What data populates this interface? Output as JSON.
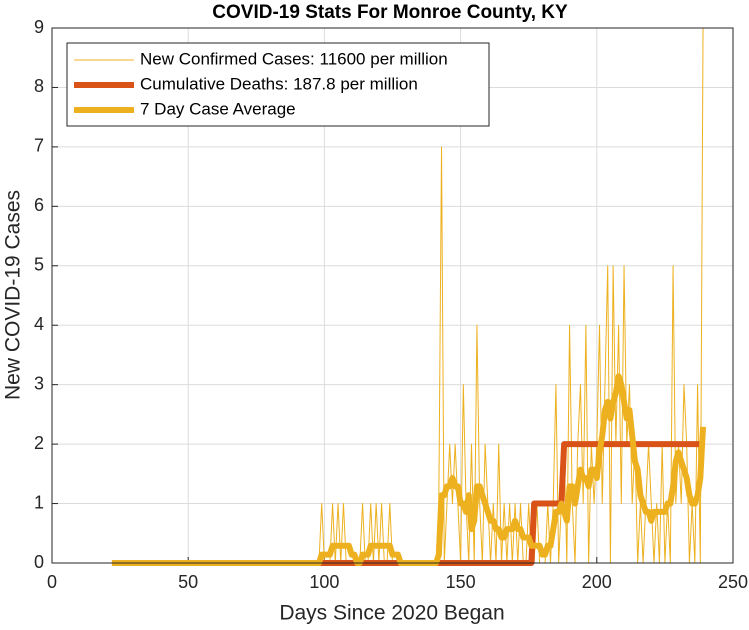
{
  "chart_data": {
    "type": "line",
    "title": "COVID-19 Stats For Monroe County, KY",
    "x_label": "Days Since 2020 Began",
    "y_label": "New COVID-19 Cases",
    "xlim": [
      0,
      250
    ],
    "xticks": [
      0,
      50,
      100,
      150,
      200,
      250
    ],
    "ylim": [
      0,
      9
    ],
    "yticks": [
      0,
      1,
      2,
      3,
      4,
      5,
      6,
      7,
      8,
      9
    ],
    "grid": true,
    "legend": "upper left",
    "x": [
      22,
      23,
      24,
      25,
      26,
      27,
      28,
      29,
      30,
      31,
      32,
      33,
      34,
      35,
      36,
      37,
      38,
      39,
      40,
      41,
      42,
      43,
      44,
      45,
      46,
      47,
      48,
      49,
      50,
      51,
      52,
      53,
      54,
      55,
      56,
      57,
      58,
      59,
      60,
      61,
      62,
      63,
      64,
      65,
      66,
      67,
      68,
      69,
      70,
      71,
      72,
      73,
      74,
      75,
      76,
      77,
      78,
      79,
      80,
      81,
      82,
      83,
      84,
      85,
      86,
      87,
      88,
      89,
      90,
      91,
      92,
      93,
      94,
      95,
      96,
      97,
      98,
      99,
      100,
      101,
      102,
      103,
      104,
      105,
      106,
      107,
      108,
      109,
      110,
      111,
      112,
      113,
      114,
      115,
      116,
      117,
      118,
      119,
      120,
      121,
      122,
      123,
      124,
      125,
      126,
      127,
      128,
      129,
      130,
      131,
      132,
      133,
      134,
      135,
      136,
      137,
      138,
      139,
      140,
      141,
      142,
      143,
      144,
      145,
      146,
      147,
      148,
      149,
      150,
      151,
      152,
      153,
      154,
      155,
      156,
      157,
      158,
      159,
      160,
      161,
      162,
      163,
      164,
      165,
      166,
      167,
      168,
      169,
      170,
      171,
      172,
      173,
      174,
      175,
      176,
      177,
      178,
      179,
      180,
      181,
      182,
      183,
      184,
      185,
      186,
      187,
      188,
      189,
      190,
      191,
      192,
      193,
      194,
      195,
      196,
      197,
      198,
      199,
      200,
      201,
      202,
      203,
      204,
      205,
      206,
      207,
      208,
      209,
      210,
      211,
      212,
      213,
      214,
      215,
      216,
      217,
      218,
      219,
      220,
      221,
      222,
      223,
      224,
      225,
      226,
      227,
      228,
      229,
      230,
      231,
      232,
      233,
      234,
      235,
      236,
      237,
      238,
      239
    ],
    "series": [
      {
        "name": "New Confirmed Cases: 11600 per million",
        "color": "#EDB120",
        "values": [
          0,
          0,
          0,
          0,
          0,
          0,
          0,
          0,
          0,
          0,
          0,
          0,
          0,
          0,
          0,
          0,
          0,
          0,
          0,
          0,
          0,
          0,
          0,
          0,
          0,
          0,
          0,
          0,
          0,
          0,
          0,
          0,
          0,
          0,
          0,
          0,
          0,
          0,
          0,
          0,
          0,
          0,
          0,
          0,
          0,
          0,
          0,
          0,
          0,
          0,
          0,
          0,
          0,
          0,
          0,
          0,
          0,
          0,
          0,
          0,
          0,
          0,
          0,
          0,
          0,
          0,
          0,
          0,
          0,
          0,
          0,
          0,
          0,
          0,
          0,
          0,
          0,
          1,
          0,
          0,
          0,
          1,
          0,
          1,
          0,
          1,
          0,
          0,
          0,
          0,
          0,
          0,
          1,
          0,
          0,
          1,
          0,
          1,
          0,
          1,
          0,
          0,
          1,
          0,
          0,
          0,
          0,
          0,
          0,
          0,
          0,
          0,
          0,
          0,
          0,
          0,
          0,
          0,
          0,
          0,
          1,
          7,
          0,
          1,
          2,
          1,
          2,
          1,
          0,
          3,
          1,
          0,
          2,
          0,
          4,
          1,
          0,
          2,
          1,
          0,
          1,
          0,
          2,
          0,
          1,
          0,
          1,
          0,
          1,
          0,
          1,
          0,
          0,
          1,
          0,
          0,
          1,
          0,
          0,
          0,
          1,
          0,
          1,
          3,
          0,
          1,
          2,
          0,
          4,
          1,
          0,
          2,
          3,
          1,
          4,
          0,
          2,
          1,
          2,
          4,
          1,
          3,
          5,
          0,
          5,
          2,
          4,
          1,
          5,
          2,
          3,
          1,
          2,
          0,
          1,
          0,
          1,
          2,
          1,
          0,
          1,
          0,
          2,
          0,
          1,
          0,
          5,
          1,
          2,
          1,
          3,
          2,
          0,
          1,
          0,
          3,
          0,
          9
        ]
      },
      {
        "name": "Cumulative Deaths: 187.8 per million",
        "color": "#D95319",
        "values": [
          0,
          0,
          0,
          0,
          0,
          0,
          0,
          0,
          0,
          0,
          0,
          0,
          0,
          0,
          0,
          0,
          0,
          0,
          0,
          0,
          0,
          0,
          0,
          0,
          0,
          0,
          0,
          0,
          0,
          0,
          0,
          0,
          0,
          0,
          0,
          0,
          0,
          0,
          0,
          0,
          0,
          0,
          0,
          0,
          0,
          0,
          0,
          0,
          0,
          0,
          0,
          0,
          0,
          0,
          0,
          0,
          0,
          0,
          0,
          0,
          0,
          0,
          0,
          0,
          0,
          0,
          0,
          0,
          0,
          0,
          0,
          0,
          0,
          0,
          0,
          0,
          0,
          0,
          0,
          0,
          0,
          0,
          0,
          0,
          0,
          0,
          0,
          0,
          0,
          0,
          0,
          0,
          0,
          0,
          0,
          0,
          0,
          0,
          0,
          0,
          0,
          0,
          0,
          0,
          0,
          0,
          0,
          0,
          0,
          0,
          0,
          0,
          0,
          0,
          0,
          0,
          0,
          0,
          0,
          0,
          0,
          0,
          0,
          0,
          0,
          0,
          0,
          0,
          0,
          0,
          0,
          0,
          0,
          0,
          0,
          0,
          0,
          0,
          0,
          0,
          0,
          0,
          0,
          0,
          0,
          0,
          0,
          0,
          0,
          0,
          0,
          0,
          0,
          0,
          0,
          1,
          1,
          1,
          1,
          1,
          1,
          1,
          1,
          1,
          1,
          1,
          2,
          2,
          2,
          2,
          2,
          2,
          2,
          2,
          2,
          2,
          2,
          2,
          2,
          2,
          2,
          2,
          2,
          2,
          2,
          2,
          2,
          2,
          2,
          2,
          2,
          2,
          2,
          2,
          2,
          2,
          2,
          2,
          2,
          2,
          2,
          2,
          2,
          2,
          2,
          2,
          2,
          2,
          2,
          2,
          2,
          2,
          2,
          2,
          2,
          2,
          2,
          2
        ]
      },
      {
        "name": "7 Day Case Average",
        "color": "#EDB120",
        "values": [
          0,
          0,
          0,
          0,
          0,
          0,
          0,
          0,
          0,
          0,
          0,
          0,
          0,
          0,
          0,
          0,
          0,
          0,
          0,
          0,
          0,
          0,
          0,
          0,
          0,
          0,
          0,
          0,
          0,
          0,
          0,
          0,
          0,
          0,
          0,
          0,
          0,
          0,
          0,
          0,
          0,
          0,
          0,
          0,
          0,
          0,
          0,
          0,
          0,
          0,
          0,
          0,
          0,
          0,
          0,
          0,
          0,
          0,
          0,
          0,
          0,
          0,
          0,
          0,
          0,
          0,
          0,
          0,
          0,
          0,
          0,
          0,
          0,
          0,
          0,
          0,
          0,
          0.14,
          0.14,
          0.14,
          0.14,
          0.29,
          0.29,
          0.29,
          0.29,
          0.29,
          0.29,
          0.29,
          0.14,
          0.14,
          0,
          0,
          0.14,
          0.14,
          0.14,
          0.29,
          0.29,
          0.29,
          0.29,
          0.29,
          0.29,
          0.29,
          0.29,
          0.14,
          0.14,
          0.14,
          0,
          0,
          0,
          0,
          0,
          0,
          0,
          0,
          0,
          0,
          0,
          0,
          0,
          0,
          0.14,
          1.14,
          1.14,
          1.29,
          1.29,
          1.43,
          1.29,
          1.29,
          1,
          1,
          0.86,
          1.14,
          0.57,
          0.71,
          1.29,
          1.29,
          1.14,
          1,
          0.86,
          0.71,
          0.71,
          0.57,
          0.57,
          0.43,
          0.43,
          0.57,
          0.57,
          0.57,
          0.71,
          0.57,
          0.57,
          0.43,
          0.43,
          0.43,
          0.29,
          0.29,
          0.29,
          0.29,
          0.14,
          0.14,
          0.29,
          0.29,
          0.57,
          0.86,
          0.86,
          1,
          0.86,
          0.71,
          1.29,
          1.29,
          1,
          1.29,
          1.57,
          1.43,
          1.43,
          1.29,
          1.57,
          1.57,
          1.43,
          1.86,
          2.14,
          2.57,
          2.71,
          2.43,
          2.71,
          2.86,
          3.14,
          3,
          2.71,
          2.43,
          2.57,
          2.14,
          1.71,
          1.57,
          1.14,
          1,
          0.86,
          0.86,
          0.71,
          0.86,
          0.86,
          0.86,
          0.86,
          0.86,
          1,
          1,
          1.29,
          1.71,
          1.86,
          1.71,
          1.57,
          1.43,
          1.14,
          1,
          1,
          1.14,
          1.43,
          2.29
        ]
      }
    ]
  }
}
